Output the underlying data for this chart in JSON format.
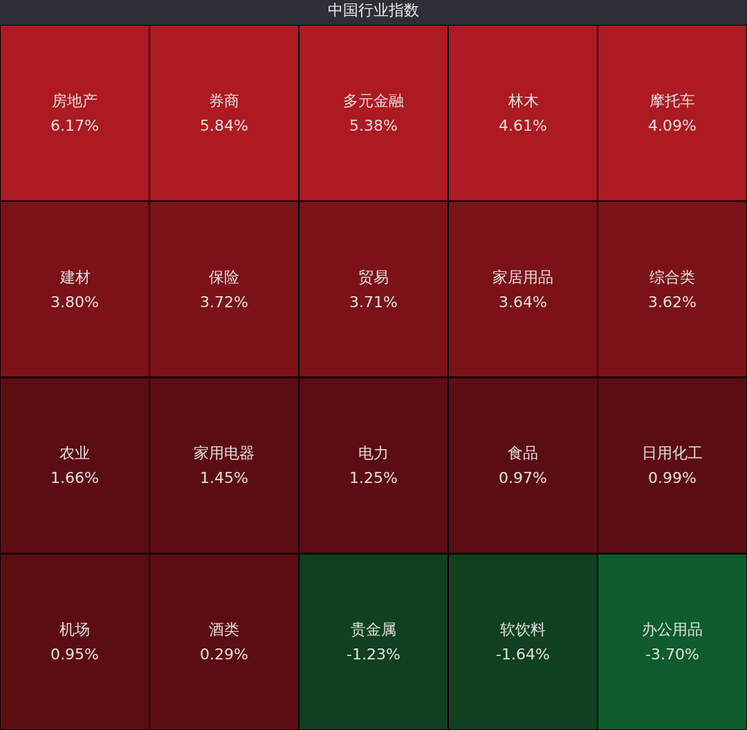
{
  "chart_data": {
    "type": "other",
    "title": "中国行业指数",
    "categories": [
      "房地产",
      "券商",
      "多元金融",
      "林木",
      "摩托车",
      "建材",
      "保险",
      "贸易",
      "家居用品",
      "综合类",
      "农业",
      "家用电器",
      "电力",
      "食品",
      "日用化工",
      "机场",
      "酒类",
      "贵金属",
      "软饮料",
      "办公用品"
    ],
    "values": [
      6.17,
      5.84,
      5.38,
      4.61,
      4.09,
      3.8,
      3.72,
      3.71,
      3.64,
      3.62,
      1.66,
      1.45,
      1.25,
      0.97,
      0.99,
      0.95,
      0.29,
      -1.23,
      -1.64,
      -3.7
    ],
    "value_labels": [
      "6.17%",
      "5.84%",
      "5.38%",
      "4.61%",
      "4.09%",
      "3.80%",
      "3.72%",
      "3.71%",
      "3.64%",
      "3.62%",
      "1.66%",
      "1.45%",
      "1.25%",
      "0.97%",
      "0.99%",
      "0.95%",
      "0.29%",
      "-1.23%",
      "-1.64%",
      "-3.70%"
    ],
    "colors": [
      "#ad1a22",
      "#ad1a22",
      "#ad1a22",
      "#ad1a22",
      "#ad1a22",
      "#7b1218",
      "#7b1218",
      "#7b1218",
      "#7b1218",
      "#7b1218",
      "#5c0d12",
      "#5c0d12",
      "#5c0d12",
      "#5c0d12",
      "#5c0d12",
      "#5c0d12",
      "#5c0d12",
      "#10401f",
      "#10401f",
      "#0e5c2c"
    ]
  }
}
